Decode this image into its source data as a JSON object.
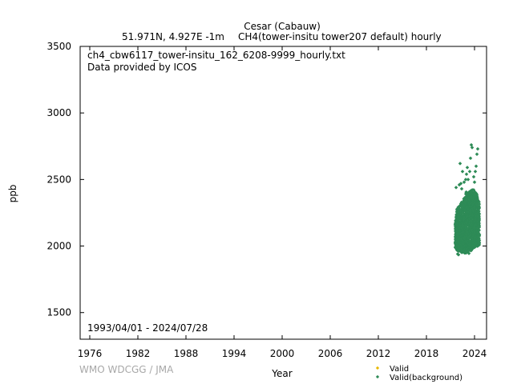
{
  "header": {
    "site": "Cesar (Cabauw)",
    "location": "51.971N, 4.927E -1m",
    "dataset": "CH4(tower-insitu tower207 default) hourly"
  },
  "annotations": {
    "filename": "ch4_cbw6117_tower-insitu_162_6208-9999_hourly.txt",
    "provider": "Data provided by ICOS",
    "period": "1993/04/01 - 2024/07/28"
  },
  "watermark": "WMO WDCGG / JMA",
  "chart_data": {
    "type": "scatter",
    "xlabel": "Year",
    "ylabel": "ppb",
    "xlim": [
      1974.8,
      2025.5
    ],
    "ylim": [
      1300,
      3500
    ],
    "xticks": [
      1976,
      1982,
      1988,
      1994,
      2000,
      2006,
      2012,
      2018,
      2024
    ],
    "yticks": [
      1500,
      2000,
      2500,
      3000,
      3500
    ],
    "legend": [
      "Valid",
      "Valid(background)"
    ],
    "legend_position": "bottom-right",
    "colors": {
      "valid": "#e8b800",
      "background": "#2e8b57"
    },
    "data_range": {
      "x": [
        2021.6,
        2024.6
      ],
      "y_min": 1940,
      "y_max_core": 2450
    },
    "background_series": {
      "band": [
        [
          2021.6,
          1990,
          2180
        ],
        [
          2021.8,
          1970,
          2280
        ],
        [
          2022.0,
          1960,
          2300
        ],
        [
          2022.2,
          1965,
          2320
        ],
        [
          2022.4,
          1950,
          2330
        ],
        [
          2022.6,
          1955,
          2350
        ],
        [
          2022.8,
          1945,
          2380
        ],
        [
          2023.0,
          1950,
          2420
        ],
        [
          2023.2,
          1960,
          2400
        ],
        [
          2023.4,
          1970,
          2420
        ],
        [
          2023.6,
          1965,
          2430
        ],
        [
          2023.8,
          1980,
          2440
        ],
        [
          2024.0,
          1990,
          2410
        ],
        [
          2024.2,
          1995,
          2400
        ],
        [
          2024.4,
          2000,
          2380
        ],
        [
          2024.6,
          2010,
          2330
        ]
      ],
      "scattered": [
        [
          2022.1,
          2460
        ],
        [
          2022.3,
          2470
        ],
        [
          2022.2,
          2620
        ],
        [
          2022.5,
          2560
        ],
        [
          2022.7,
          2480
        ],
        [
          2022.9,
          2500
        ],
        [
          2023.0,
          2540
        ],
        [
          2023.1,
          2590
        ],
        [
          2023.2,
          2500
        ],
        [
          2023.4,
          2560
        ],
        [
          2023.5,
          2660
        ],
        [
          2023.6,
          2760
        ],
        [
          2023.7,
          2740
        ],
        [
          2023.9,
          2520
        ],
        [
          2024.1,
          2560
        ],
        [
          2024.2,
          2600
        ],
        [
          2024.3,
          2690
        ],
        [
          2024.4,
          2730
        ],
        [
          2024.0,
          2480
        ],
        [
          2022.4,
          2430
        ],
        [
          2021.7,
          2440
        ],
        [
          2021.9,
          1940
        ],
        [
          2022.0,
          1935
        ],
        [
          2023.3,
          1945
        ]
      ]
    }
  }
}
